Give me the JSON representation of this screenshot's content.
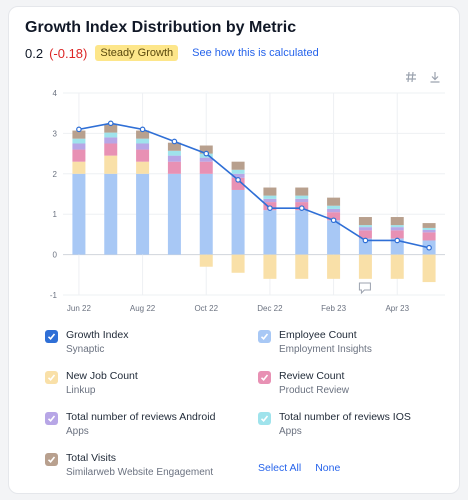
{
  "header": {
    "title": "Growth Index Distribution by Metric",
    "value": "0.2",
    "delta": "(-0.18)",
    "badge": "Steady Growth",
    "link": "See how this is calculated"
  },
  "toolbar": {
    "icons": [
      "hash-icon",
      "download-icon"
    ]
  },
  "colors": {
    "growth_index": "#2f6fd6",
    "employee_count": "#a8c8f5",
    "new_job_count": "#f9e0a8",
    "review_count": "#e891b4",
    "reviews_android": "#b7a6e6",
    "reviews_ios": "#9fe3ec",
    "total_visits": "#b8a08e"
  },
  "chart_data": {
    "type": "bar",
    "x": [
      "Jun 22",
      "Jul 22",
      "Aug 22",
      "Sep 22",
      "Oct 22",
      "Nov 22",
      "Dec 22",
      "Jan 23",
      "Feb 23",
      "Mar 23",
      "Apr 23",
      "May 23"
    ],
    "xticks": [
      "Jun 22",
      "Aug 22",
      "Oct 22",
      "Dec 22",
      "Feb 23",
      "Apr 23"
    ],
    "ylim": [
      -1,
      4
    ],
    "yticks": [
      -1,
      0,
      1,
      2,
      3,
      4
    ],
    "grid": true,
    "series": [
      {
        "name": "Employee Count",
        "values": [
          2.0,
          2.0,
          2.0,
          2.0,
          2.0,
          1.6,
          1.1,
          1.1,
          0.85,
          0.4,
          0.4,
          0.35
        ]
      },
      {
        "name": "New Job Count",
        "values": [
          0.3,
          0.45,
          0.3,
          0.0,
          -0.3,
          -0.45,
          -0.6,
          -0.6,
          -0.6,
          -0.6,
          -0.6,
          -0.68
        ]
      },
      {
        "name": "Review Count",
        "values": [
          0.3,
          0.3,
          0.3,
          0.3,
          0.3,
          0.3,
          0.2,
          0.2,
          0.2,
          0.2,
          0.2,
          0.2
        ]
      },
      {
        "name": "Total number of reviews Android",
        "values": [
          0.15,
          0.15,
          0.15,
          0.15,
          0.1,
          0.1,
          0.08,
          0.08,
          0.08,
          0.08,
          0.08,
          0.06
        ]
      },
      {
        "name": "Total number of reviews IOS",
        "values": [
          0.12,
          0.12,
          0.12,
          0.12,
          0.1,
          0.1,
          0.08,
          0.08,
          0.08,
          0.05,
          0.05,
          0.05
        ]
      },
      {
        "name": "Total Visits",
        "values": [
          0.2,
          0.2,
          0.2,
          0.2,
          0.2,
          0.2,
          0.2,
          0.2,
          0.2,
          0.2,
          0.2,
          0.12
        ]
      },
      {
        "name": "Growth Index",
        "type": "line",
        "values": [
          3.1,
          3.25,
          3.1,
          2.8,
          2.5,
          1.85,
          1.15,
          1.15,
          0.85,
          0.35,
          0.35,
          0.17
        ]
      }
    ]
  },
  "legend": {
    "items": [
      {
        "name": "Growth Index",
        "source": "Synaptic"
      },
      {
        "name": "Employee Count",
        "source": "Employment Insights"
      },
      {
        "name": "New Job Count",
        "source": "Linkup"
      },
      {
        "name": "Review Count",
        "source": "Product Review"
      },
      {
        "name": "Total number of reviews Android",
        "source": "Apps"
      },
      {
        "name": "Total number of reviews IOS",
        "source": "Apps"
      },
      {
        "name": "Total Visits",
        "source": "Similarweb Website Engagement"
      }
    ],
    "select_all": "Select All",
    "none": "None"
  }
}
